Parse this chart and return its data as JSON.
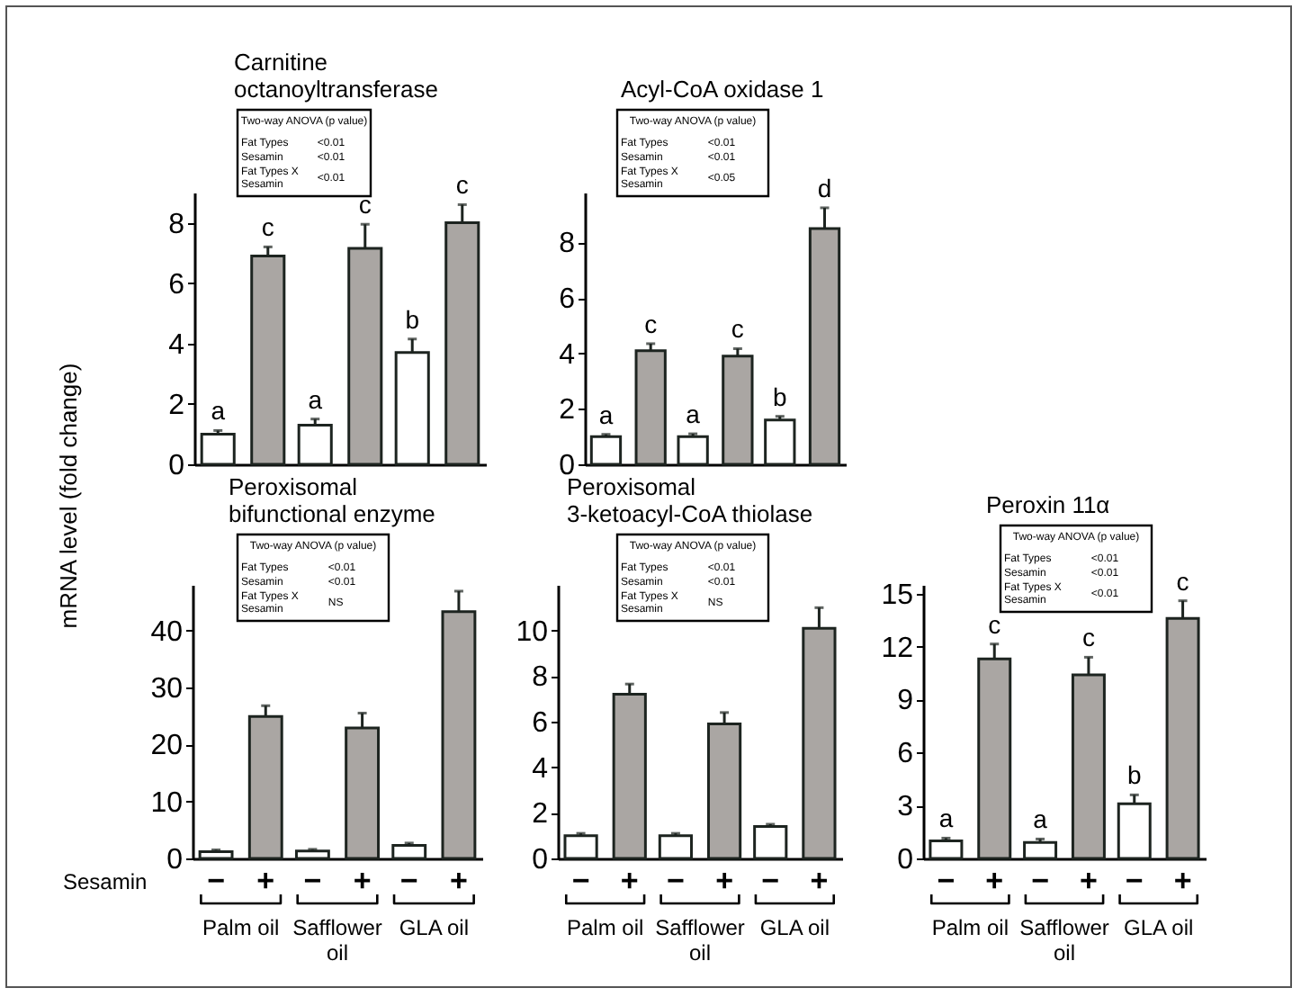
{
  "chart_data": [
    {
      "type": "bar",
      "title": "Carnitine\noctanoyltransferase",
      "categories": [
        null,
        null,
        null
      ],
      "series": [
        {
          "color": "#ffffff",
          "values": [
            1.0,
            1.3,
            3.7
          ],
          "errors": [
            0.12,
            0.2,
            0.45
          ],
          "value_labels": [
            "a",
            "a",
            "b"
          ]
        },
        {
          "color": "#aaa6a3",
          "values": [
            6.9,
            7.15,
            8.0
          ],
          "errors": [
            0.3,
            0.8,
            0.6
          ],
          "value_labels": [
            "c",
            "c",
            "c"
          ]
        }
      ],
      "ylim": [
        0,
        9
      ],
      "yticks": [
        0,
        2,
        4,
        6,
        8
      ],
      "tick_labels": "y",
      "annotations": [
        "Two-way ANOVA (p value)",
        "Fat Types",
        "<0.01",
        "Sesamin",
        "<0.01",
        "Fat Types X\nSesamin",
        "<0.01"
      ]
    },
    {
      "type": "bar",
      "title": "Acyl-CoA oxidase 1",
      "categories": [
        null,
        null,
        null
      ],
      "series": [
        {
          "color": "#ffffff",
          "values": [
            1.0,
            1.0,
            1.6
          ],
          "errors": [
            0.08,
            0.1,
            0.13
          ],
          "value_labels": [
            "a",
            "a",
            "b"
          ]
        },
        {
          "color": "#aaa6a3",
          "values": [
            4.1,
            3.9,
            8.5
          ],
          "errors": [
            0.25,
            0.27,
            0.75
          ],
          "value_labels": [
            "c",
            "c",
            "d"
          ]
        }
      ],
      "ylim": [
        0,
        9.8
      ],
      "yticks": [
        0,
        2,
        4,
        6,
        8
      ],
      "tick_labels": "y",
      "annotations": [
        "Two-way ANOVA (p value)",
        "Fat Types",
        "<0.01",
        "Sesamin",
        "<0.01",
        "Fat Types X\nSesamin",
        "<0.05"
      ]
    },
    {
      "type": "bar",
      "title": "Peroxisomal\nbifunctional enzyme",
      "ylabel": "mRNA level (fold change)",
      "legend_title": "Sesamin",
      "categories": [
        "Palm oil",
        "Safflower\noil",
        "GLA oil"
      ],
      "series": [
        {
          "name": "−",
          "color": "#ffffff",
          "values": [
            1.2,
            1.3,
            2.3
          ],
          "errors": [
            0.3,
            0.3,
            0.4
          ]
        },
        {
          "name": "+",
          "color": "#aaa6a3",
          "values": [
            24.9,
            22.9,
            43.3
          ],
          "errors": [
            1.9,
            2.6,
            3.6
          ]
        }
      ],
      "ylim": [
        0,
        48
      ],
      "yticks": [
        0,
        10,
        20,
        30,
        40
      ],
      "annotations": [
        "Two-way ANOVA (p value)",
        "Fat Types",
        "<0.01",
        "Sesamin",
        "<0.01",
        "Fat Types X\nSesamin",
        "NS"
      ]
    },
    {
      "type": "bar",
      "title": "Peroxisomal\n3-ketoacyl-CoA thiolase",
      "categories": [
        "Palm oil",
        "Safflower\noil",
        "GLA oil"
      ],
      "series": [
        {
          "name": "−",
          "color": "#ffffff",
          "values": [
            1.0,
            1.0,
            1.4
          ],
          "errors": [
            0.1,
            0.1,
            0.1
          ]
        },
        {
          "name": "+",
          "color": "#aaa6a3",
          "values": [
            7.2,
            5.9,
            10.1
          ],
          "errors": [
            0.45,
            0.5,
            0.9
          ]
        }
      ],
      "ylim": [
        0,
        12
      ],
      "yticks": [
        0,
        2,
        4,
        6,
        8,
        10
      ],
      "annotations": [
        "Two-way ANOVA (p value)",
        "Fat Types",
        "<0.01",
        "Sesamin",
        "<0.01",
        "Fat Types X\nSesamin",
        "NS"
      ]
    },
    {
      "type": "bar",
      "title": "Peroxin 11α",
      "categories": [
        "Palm oil",
        "Safflower\noil",
        "GLA oil"
      ],
      "series": [
        {
          "name": "−",
          "color": "#ffffff",
          "values": [
            1.0,
            0.9,
            3.1
          ],
          "errors": [
            0.15,
            0.2,
            0.5
          ],
          "value_labels": [
            "a",
            "a",
            "b"
          ]
        },
        {
          "name": "+",
          "color": "#aaa6a3",
          "values": [
            11.3,
            10.4,
            13.6
          ],
          "errors": [
            0.85,
            1.0,
            1.0
          ],
          "value_labels": [
            "c",
            "c",
            "c"
          ]
        }
      ],
      "ylim": [
        0,
        15.5
      ],
      "yticks": [
        0,
        3,
        6,
        9,
        12,
        15
      ],
      "annotations": [
        "Two-way ANOVA (p value)",
        "Fat Types",
        "<0.01",
        "Sesamin",
        "<0.01",
        "Fat Types X\nSesamin",
        "<0.01"
      ]
    }
  ]
}
